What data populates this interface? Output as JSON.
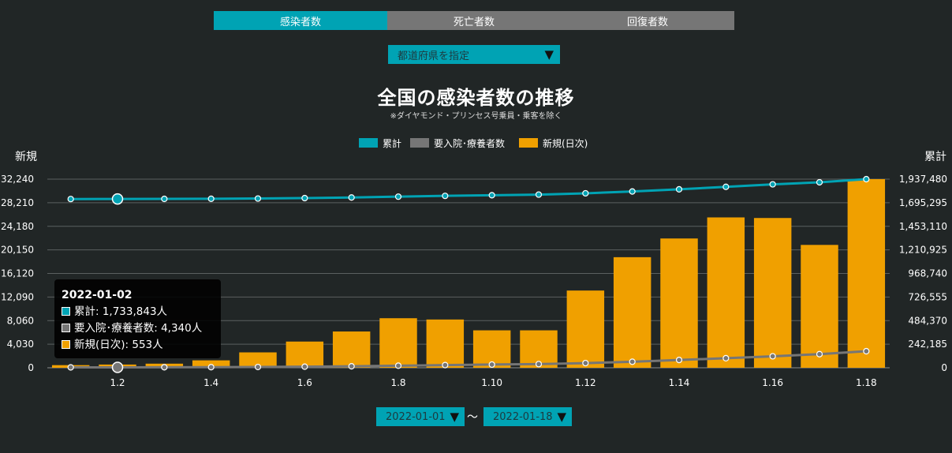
{
  "tabs": [
    {
      "label": "感染者数",
      "active": true
    },
    {
      "label": "死亡者数",
      "active": false
    },
    {
      "label": "回復者数",
      "active": false
    }
  ],
  "prefecture_select": {
    "label": "都道府県を指定"
  },
  "title": "全国の感染者数の推移",
  "note": "※ダイヤモンド・プリンセス号乗員・乗客を除く",
  "colors": {
    "cumulative": "#00a3b4",
    "hospitalized": "#767676",
    "daily": "#f0a000"
  },
  "date_range": {
    "from": "2022-01-01",
    "separator": "～",
    "to": "2022-01-18"
  },
  "tooltip": {
    "title": "2022-01-02",
    "lines": [
      "累計: 1,733,843人",
      "要入院･療養者数: 4,340人",
      "新規(日次): 553人"
    ]
  },
  "chart_data": {
    "type": "bar",
    "legend": [
      "累計",
      "要入院･療養者数",
      "新規(日次)"
    ],
    "legend_position": "top",
    "x": [
      "1.1",
      "1.2",
      "1.3",
      "1.4",
      "1.5",
      "1.6",
      "1.7",
      "1.8",
      "1.9",
      "1.10",
      "1.11",
      "1.12",
      "1.13",
      "1.14",
      "1.15",
      "1.16",
      "1.17",
      "1.18"
    ],
    "x_tick_labels": [
      "1.2",
      "1.4",
      "1.6",
      "1.8",
      "1.10",
      "1.12",
      "1.14",
      "1.16",
      "1.18"
    ],
    "ylabel_left": "新規",
    "ylabel_right": "累計",
    "ylim_left": [
      0,
      32240
    ],
    "ylim_right": [
      0,
      1937480
    ],
    "y_ticks_left": [
      "0",
      "4,030",
      "8,060",
      "12,090",
      "16,120",
      "20,150",
      "24,180",
      "28,210",
      "32,240"
    ],
    "y_ticks_right": [
      "0",
      "242,185",
      "484,370",
      "726,555",
      "968,740",
      "1,210,925",
      "1,453,110",
      "1,695,295",
      "1,937,480"
    ],
    "grid": true,
    "series": [
      {
        "name": "新規(日次)",
        "type": "bar",
        "axis": "left",
        "values": [
          450,
          553,
          700,
          1270,
          2630,
          4480,
          6200,
          8470,
          8250,
          6400,
          6400,
          13200,
          18900,
          22100,
          25700,
          25600,
          21000,
          32240
        ]
      },
      {
        "name": "累計",
        "type": "line",
        "axis": "right",
        "values": [
          1733290,
          1733843,
          1734600,
          1735900,
          1738500,
          1743000,
          1749200,
          1757700,
          1765900,
          1772300,
          1778700,
          1791900,
          1810800,
          1832900,
          1858600,
          1884200,
          1905200,
          1937480
        ]
      },
      {
        "name": "要入院･療養者数",
        "type": "line",
        "axis": "right",
        "values": [
          4200,
          4340,
          5000,
          6000,
          7800,
          11000,
          15000,
          21000,
          27500,
          33000,
          38000,
          48000,
          62000,
          80000,
          98000,
          118000,
          140000,
          170000
        ]
      }
    ]
  }
}
